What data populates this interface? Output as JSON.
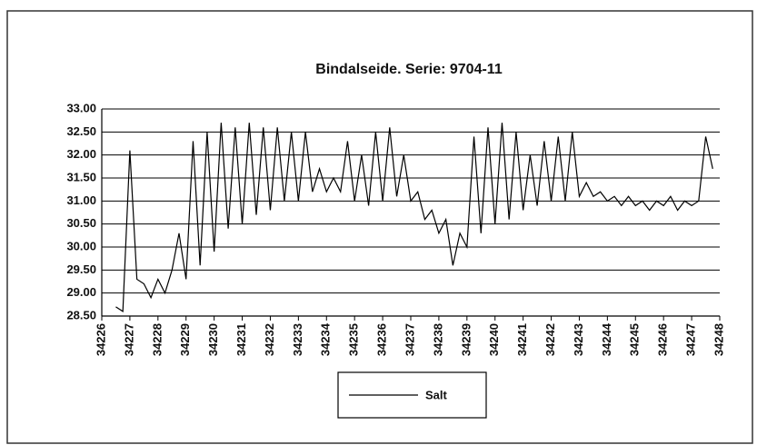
{
  "chart_data": {
    "type": "line",
    "title": "Bindalseide.    Serie: 9704-11",
    "x": [
      34226.5,
      34226.75,
      34227,
      34227.25,
      34227.5,
      34227.75,
      34228,
      34228.25,
      34228.5,
      34228.75,
      34229,
      34229.25,
      34229.5,
      34229.75,
      34230,
      34230.25,
      34230.5,
      34230.75,
      34231,
      34231.25,
      34231.5,
      34231.75,
      34232,
      34232.25,
      34232.5,
      34232.75,
      34233,
      34233.25,
      34233.5,
      34233.75,
      34234,
      34234.25,
      34234.5,
      34234.75,
      34235,
      34235.25,
      34235.5,
      34235.75,
      34236,
      34236.25,
      34236.5,
      34236.75,
      34237,
      34237.25,
      34237.5,
      34237.75,
      34238,
      34238.25,
      34238.5,
      34238.75,
      34239,
      34239.25,
      34239.5,
      34239.75,
      34240,
      34240.25,
      34240.5,
      34240.75,
      34241,
      34241.25,
      34241.5,
      34241.75,
      34242,
      34242.25,
      34242.5,
      34242.75,
      34243,
      34243.25,
      34243.5,
      34243.75,
      34244,
      34244.25,
      34244.5,
      34244.75,
      34245,
      34245.25,
      34245.5,
      34245.75,
      34246,
      34246.25,
      34246.5,
      34246.75,
      34247,
      34247.25,
      34247.5,
      34247.75
    ],
    "series": [
      {
        "name": "Salt",
        "color": "#000000",
        "values": [
          28.7,
          28.6,
          32.1,
          29.3,
          29.2,
          28.9,
          29.3,
          29.0,
          29.5,
          30.3,
          29.3,
          32.3,
          29.6,
          32.5,
          29.9,
          32.7,
          30.4,
          32.6,
          30.5,
          32.7,
          30.7,
          32.6,
          30.8,
          32.6,
          31.0,
          32.5,
          31.0,
          32.5,
          31.2,
          31.7,
          31.2,
          31.5,
          31.2,
          32.3,
          31.0,
          32.0,
          30.9,
          32.5,
          31.0,
          32.6,
          31.1,
          32.0,
          31.0,
          31.2,
          30.6,
          30.8,
          30.3,
          30.6,
          29.6,
          30.3,
          30.0,
          32.4,
          30.3,
          32.6,
          30.5,
          32.7,
          30.6,
          32.5,
          30.8,
          32.0,
          30.9,
          32.3,
          31.0,
          32.4,
          31.0,
          32.5,
          31.1,
          31.4,
          31.1,
          31.2,
          31.0,
          31.1,
          30.9,
          31.1,
          30.9,
          31.0,
          30.8,
          31.0,
          30.9,
          31.1,
          30.8,
          31.0,
          30.9,
          31.0,
          32.4,
          31.7
        ]
      }
    ],
    "xlim": [
      34226,
      34248
    ],
    "xticks": [
      34226,
      34227,
      34228,
      34229,
      34230,
      34231,
      34232,
      34233,
      34234,
      34235,
      34236,
      34237,
      34238,
      34239,
      34240,
      34241,
      34242,
      34243,
      34244,
      34245,
      34246,
      34247,
      34248
    ],
    "ylim": [
      28.5,
      33
    ],
    "yticks": [
      {
        "value": 28.5,
        "label": "28.50"
      },
      {
        "value": 29,
        "label": "29.00"
      },
      {
        "value": 29.5,
        "label": "29.50"
      },
      {
        "value": 30,
        "label": "30.00"
      },
      {
        "value": 30.5,
        "label": "30.50"
      },
      {
        "value": 31,
        "label": "31.00"
      },
      {
        "value": 31.5,
        "label": "31.50"
      },
      {
        "value": 32,
        "label": "32.00"
      },
      {
        "value": 32.5,
        "label": "32.50"
      },
      {
        "value": 33,
        "label": "33.00"
      }
    ],
    "grid": true
  }
}
